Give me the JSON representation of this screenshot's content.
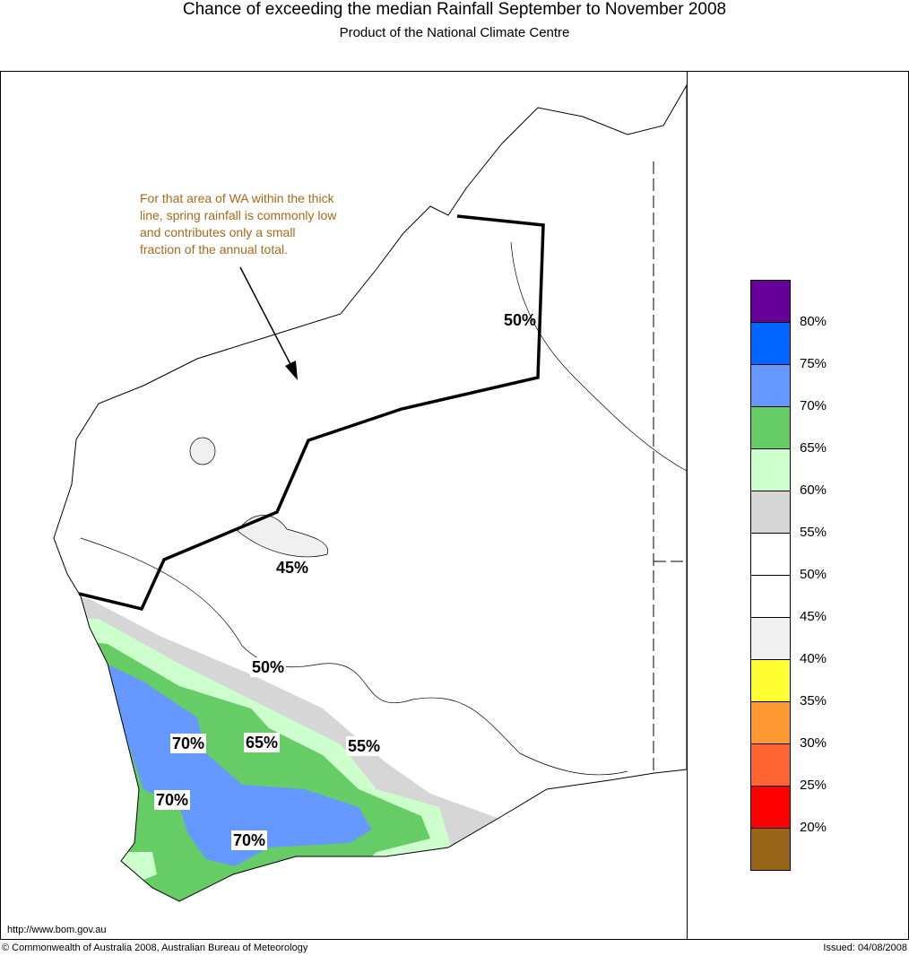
{
  "header": {
    "title": "Chance of exceeding the median Rainfall September to November 2008",
    "subtitle": "Product of the National Climate Centre"
  },
  "annotation": "For that area of WA within the thick line, spring rainfall is commonly low and contributes only a small fraction of the annual total.",
  "contour_labels": [
    "50%",
    "45%",
    "50%",
    "55%",
    "65%",
    "70%",
    "70%",
    "70%"
  ],
  "legend": {
    "colors": [
      "#660099",
      "#0066ff",
      "#6699ff",
      "#66cc66",
      "#ccffcc",
      "#d6d6d6",
      "#ffffff",
      "#ffffff",
      "#f0f0f0",
      "#ffff33",
      "#ff9933",
      "#ff6633",
      "#ff0000",
      "#996619"
    ],
    "labels": [
      "80%",
      "75%",
      "70%",
      "65%",
      "60%",
      "55%",
      "50%",
      "45%",
      "40%",
      "35%",
      "30%",
      "25%",
      "20%"
    ]
  },
  "footer": {
    "url": "http://www.bom.gov.au",
    "copyright": "© Commonwealth of Australia 2008, Australian Bureau of Meteorology",
    "issued": "Issued: 04/08/2008"
  }
}
